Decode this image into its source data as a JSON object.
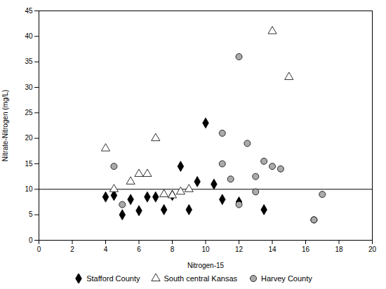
{
  "chart_data": {
    "type": "scatter",
    "xlabel": "Nitrogen-15",
    "ylabel": "Nitrate-Nitrogen (mg/L)",
    "xlim": [
      0,
      20
    ],
    "ylim": [
      0,
      45
    ],
    "xticks": [
      0,
      2,
      4,
      6,
      8,
      10,
      12,
      14,
      16,
      18,
      20
    ],
    "yticks": [
      0,
      5,
      10,
      15,
      20,
      25,
      30,
      35,
      40,
      45
    ],
    "hline": 10,
    "grid": false,
    "legend": "bottom",
    "series": [
      {
        "name": "Stafford County",
        "color": "#000000",
        "marker": "diamond",
        "x": [
          4.0,
          4.5,
          5.0,
          5.5,
          6.0,
          6.5,
          7.0,
          7.5,
          8.0,
          8.5,
          9.0,
          9.5,
          10.0,
          10.5,
          11.0,
          12.0,
          13.5
        ],
        "y": [
          8.5,
          8.8,
          5.0,
          8.0,
          5.8,
          8.5,
          8.5,
          6.0,
          8.8,
          14.5,
          6.0,
          11.5,
          23.0,
          11.0,
          8.0,
          7.5,
          6.0
        ]
      },
      {
        "name": "South central Kansas",
        "color": "#ffffff",
        "marker": "triangle",
        "x": [
          4.0,
          4.5,
          5.5,
          6.0,
          6.5,
          7.0,
          7.5,
          8.0,
          8.5,
          9.0,
          14.0,
          15.0
        ],
        "y": [
          18.0,
          10.0,
          11.5,
          13.0,
          13.0,
          20.0,
          9.0,
          8.8,
          9.5,
          10.0,
          41.0,
          32.0
        ]
      },
      {
        "name": "Harvey County",
        "color": "#aaaaaa",
        "marker": "circle",
        "x": [
          4.5,
          5.0,
          11.0,
          11.0,
          11.5,
          12.0,
          12.0,
          12.5,
          13.0,
          13.0,
          13.5,
          14.0,
          14.5,
          16.5,
          16.5,
          17.0
        ],
        "y": [
          14.5,
          7.0,
          21.0,
          15.0,
          12.0,
          36.0,
          7.0,
          19.0,
          12.5,
          9.5,
          15.5,
          14.5,
          14.0,
          4.0,
          4.0,
          9.0
        ]
      }
    ]
  }
}
